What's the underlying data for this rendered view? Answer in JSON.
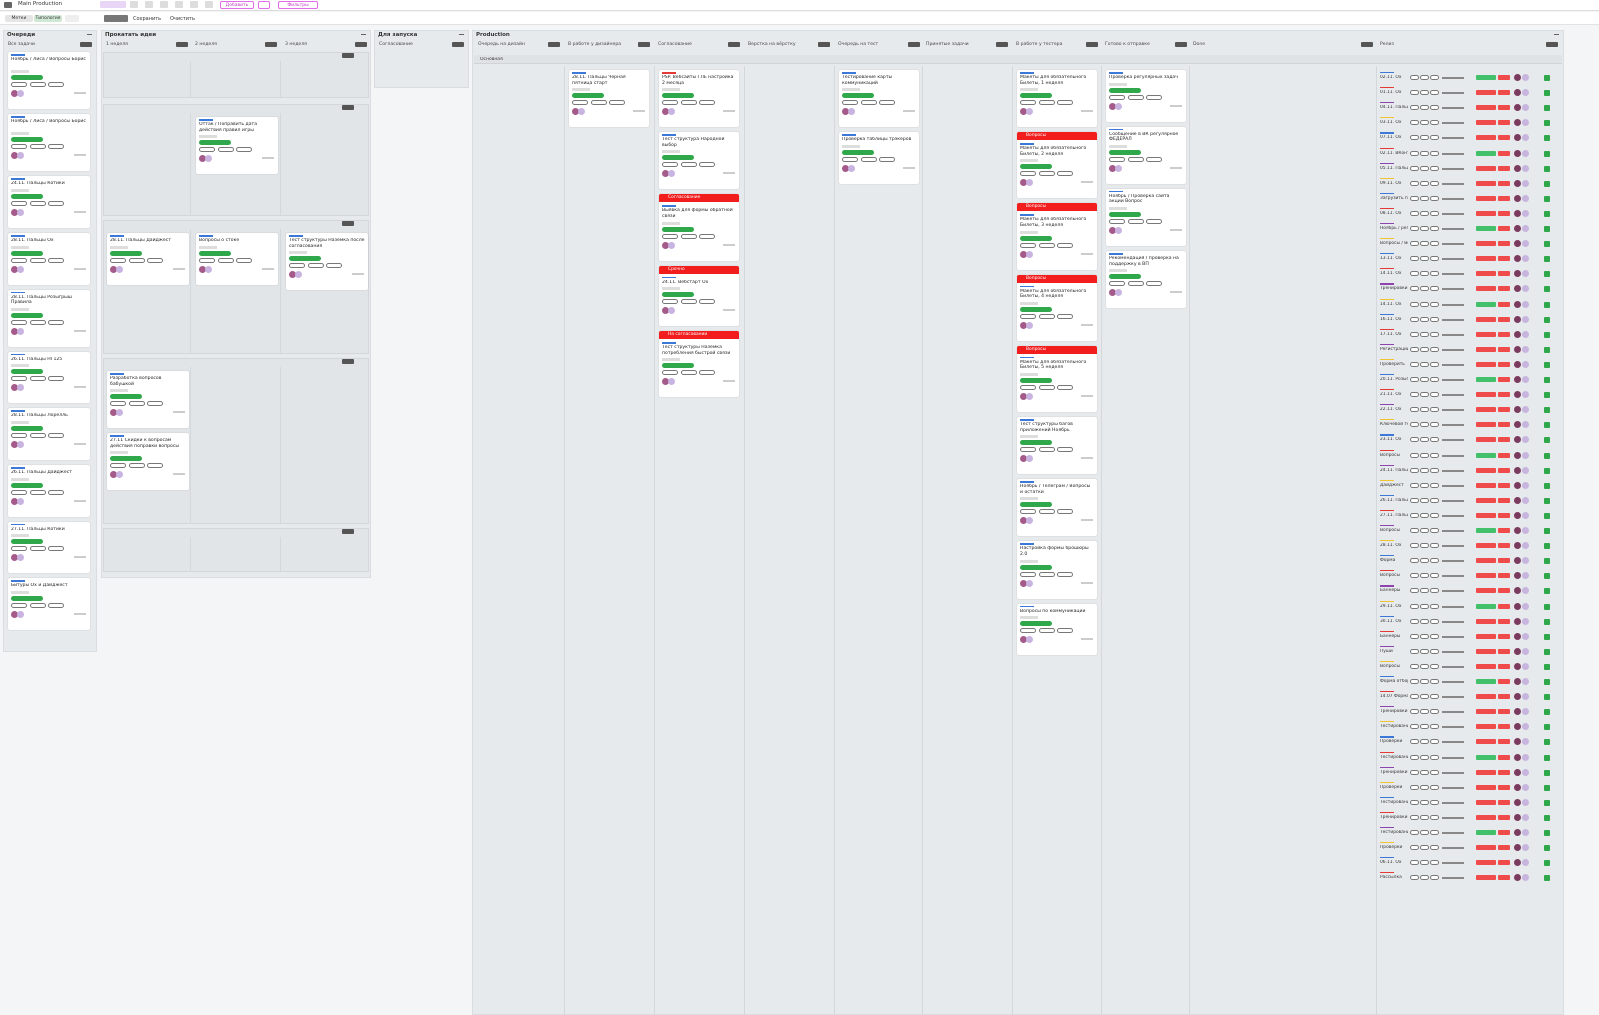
{
  "toolbar": {
    "title": "Main Production",
    "buttons": [
      "Добавить",
      "Фильтры"
    ]
  },
  "filterbar": {
    "chips": [
      "Метки",
      "Типология"
    ],
    "actions": [
      "Сохранить",
      "Очистить"
    ]
  },
  "queues": {
    "title": "Очереди",
    "column": "Все задачи",
    "cards": [
      "Ноябрь / Лиса / Вопросы Борис",
      "Ноябрь / Лиса / Вопросы Борис",
      "24.11. Пальцы Котики",
      "28.11. Пальцы Ох",
      "28.11. Пальцы Розыгрыш Правила",
      "26.11. Пальцы НГ125",
      "28.11. Пальцы Лорелль",
      "26.11. Пальцы Дайджест",
      "27.11. Пальцы Котики",
      "Битуры Ох и Дайджест"
    ]
  },
  "ideas": {
    "title": "Прокатать идеи",
    "columns": [
      "1 неделя",
      "2 неделя",
      "3 неделя"
    ],
    "lanes": [
      [
        [],
        [],
        []
      ],
      [
        [],
        [
          "Оттак / Поправить дата действия правил игры"
        ],
        []
      ],
      [
        [
          "28.11. Пальцы Дайджест"
        ],
        [
          "Вопросы о стоке"
        ],
        [
          "Тест структуры Наземка после согласования"
        ]
      ],
      [
        [
          "Разработка вопросов бабушкой",
          "27.11 Скидки к вопросам действия поправки вопросы"
        ],
        [],
        []
      ],
      [
        [],
        [],
        []
      ]
    ]
  },
  "launch": {
    "title": "Для запуска",
    "column": "Согласование"
  },
  "production": {
    "title": "Production",
    "lane": "Основная",
    "columns": [
      {
        "title": "Очередь на дизайн",
        "cards": []
      },
      {
        "title": "В работе у дизайнера",
        "cards": [
          {
            "title": "28.11. Пальцы Черная пятница старт"
          }
        ]
      },
      {
        "title": "Согласование",
        "cards": [
          {
            "title": "PSP. Вебсайты ГЛЕ настройка 2 месяца"
          },
          {
            "title": "Тест структура Народной выбор"
          },
          {
            "flag": "Согласование",
            "title": "Выявка для формы обратной связи"
          },
          {
            "flag": "Срочно",
            "title": "24.11. Вебстарт Ох"
          },
          {
            "flag": "На согласовании",
            "title": "Тест структуры Наземка потребления быстрой связи"
          }
        ]
      },
      {
        "title": "Верстка на вёрстку",
        "cards": []
      },
      {
        "title": "Очередь на тест",
        "cards": [
          {
            "title": "Тестирование карты коммуникаций"
          },
          {
            "title": "Проверка таблицы трэкеров"
          }
        ]
      },
      {
        "title": "Принятые задачи",
        "cards": []
      },
      {
        "title": "В работе у тестера",
        "cards": [
          {
            "title": "Макеты для обязательного Билеты, 1 неделя"
          },
          {
            "flag": "Вопросы",
            "title": "Макеты для обязательного Билеты, 2 неделя"
          },
          {
            "flag": "Вопросы",
            "title": "Макеты для обязательного Билеты, 3 неделя"
          },
          {
            "flag": "Вопросы",
            "title": "Макеты для обязательного Билеты, 4 неделя"
          },
          {
            "flag": "Вопросы",
            "title": "Макеты для обязательного Билеты, 5 неделя"
          },
          {
            "title": "Тест структуры багов приложений Ноябрь"
          },
          {
            "title": "Ноябрь / Телеграм / Вопросы и остатки"
          },
          {
            "title": "Настройка формы брошюры 2.0"
          },
          {
            "title": "Вопросы по коммуникации"
          }
        ]
      },
      {
        "title": "Готово к отправке",
        "cards": [
          {
            "title": "Проверка регулярных задач"
          },
          {
            "title": "Сообщение в ВК регулярное ФЕДЕРАЛ"
          },
          {
            "title": "Ноябрь / Проверка сайта акции Вопрос"
          },
          {
            "title": "Рекомендация / проверка на поддержку в ВП"
          }
        ]
      },
      {
        "title": "Done",
        "cards": []
      },
      {
        "title": "Релиз",
        "cards": []
      }
    ],
    "release_rows": [
      "02.11. Ох",
      "01.11. Ох",
      "04.11. Пальцы",
      "03.11. Ох",
      "07.11. Ох",
      "02.11. ВКонтакте",
      "05.11. Пальцы",
      "09.11. Ох",
      "Загрузить пост",
      "08.11. Ох",
      "Ноябрь / регулярка",
      "Вопросы / Вопросы",
      "13.11. Ох",
      "14.11. Ох",
      "Тренировки",
      "14.11. Ох",
      "16.11. Ох",
      "17.11. Ох",
      "Регистрации",
      "Проверить",
      "20.11. Розыгрыш",
      "21.11. Ох",
      "22.11. Ох",
      "Ключевой тест",
      "23.11. Ох",
      "Вопросы",
      "24.11. Пальцы",
      "Дайджест",
      "26.11. Пальцы",
      "27.11. Пальцы",
      "Вопросы",
      "28.11. Ох",
      "Форма",
      "Вопросы",
      "Баннеры",
      "29.11. Ох",
      "30.11. Ох",
      "Баннеры",
      "Пуши",
      "Вопросы",
      "Форма отбора",
      "14.07 Форма",
      "Тренировки",
      "Тестирование",
      "Проверки",
      "Тестирование",
      "Тренировки",
      "Проверки",
      "Тестирование",
      "Тренировки",
      "Тестирование",
      "Проверки",
      "06.11. Ох",
      "Рассылка"
    ]
  }
}
